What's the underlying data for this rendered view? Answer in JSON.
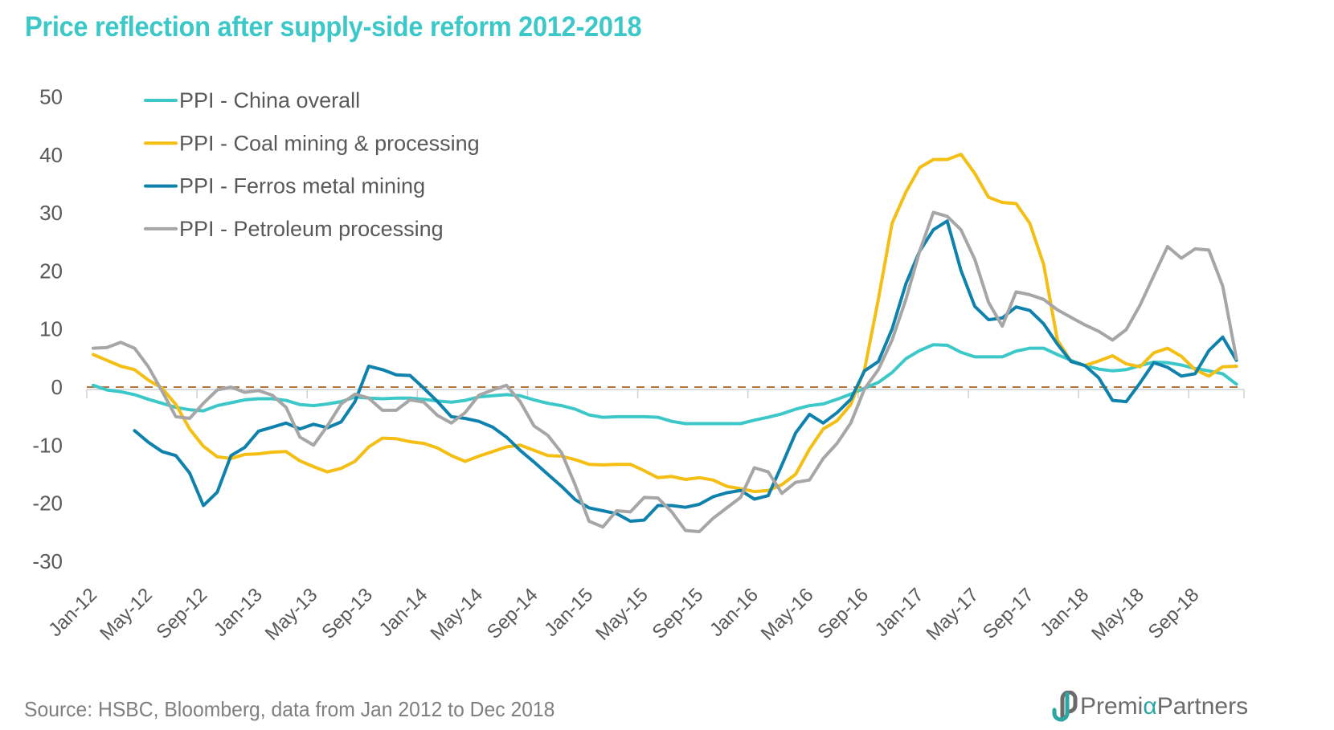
{
  "title": "Price reflection after supply-side reform 2012-2018",
  "source": "Source: HSBC, Bloomberg, data from Jan 2012 to Dec 2018",
  "logo": {
    "prefix": "Premi",
    "alpha": "α",
    "suffix": "Partners",
    "icon": "premia-logo-icon"
  },
  "chart_data": {
    "type": "line",
    "title": "Price reflection after supply-side reform 2012-2018",
    "xlabel": "",
    "ylabel": "",
    "ylim": [
      -30,
      50
    ],
    "yticks": [
      50,
      40,
      30,
      20,
      10,
      0,
      -10,
      -20,
      -30
    ],
    "ytick_labels": [
      "50",
      "40",
      "30",
      "20",
      "10",
      "0",
      "-10",
      "-20",
      "-30"
    ],
    "xtick_labels": [
      "Jan-12",
      "May-12",
      "Sep-12",
      "Jan-13",
      "May-13",
      "Sep-13",
      "Jan-14",
      "May-14",
      "Sep-14",
      "Jan-15",
      "May-15",
      "Sep-15",
      "Jan-16",
      "May-16",
      "Sep-16",
      "Jan-17",
      "May-17",
      "Sep-17",
      "Jan-18",
      "May-18",
      "Sep-18"
    ],
    "xtick_every_months": 4,
    "x_start": "Jan-12",
    "x_end": "Dec-18",
    "n_months": 84,
    "grid": false,
    "legend_position": "top-left",
    "reference_line": {
      "value": 0,
      "style": "dashed",
      "color": "#b5743a"
    },
    "series": [
      {
        "name": "PPI - China overall",
        "color": "#3cc8c8",
        "values": [
          0.3,
          -0.5,
          -0.8,
          -1.3,
          -2.1,
          -2.8,
          -3.5,
          -3.9,
          -4.1,
          -3.2,
          -2.7,
          -2.2,
          -2.0,
          -2.0,
          -2.3,
          -3.0,
          -3.2,
          -2.9,
          -2.5,
          -1.7,
          -1.9,
          -2.0,
          -1.9,
          -1.9,
          -2.1,
          -2.4,
          -2.6,
          -2.3,
          -1.7,
          -1.5,
          -1.3,
          -1.5,
          -2.2,
          -2.8,
          -3.2,
          -3.8,
          -4.8,
          -5.2,
          -5.1,
          -5.1,
          -5.1,
          -5.2,
          -5.9,
          -6.3,
          -6.3,
          -6.3,
          -6.3,
          -6.3,
          -5.7,
          -5.2,
          -4.6,
          -3.8,
          -3.2,
          -2.9,
          -2.1,
          -1.2,
          -0.2,
          0.8,
          2.5,
          4.9,
          6.3,
          7.3,
          7.2,
          6.0,
          5.2,
          5.2,
          5.2,
          6.2,
          6.7,
          6.7,
          5.6,
          4.6,
          3.7,
          3.1,
          2.8,
          3.0,
          3.7,
          4.3,
          4.2,
          3.8,
          3.2,
          2.8,
          2.3,
          0.5
        ]
      },
      {
        "name": "PPI - Coal mining & processing",
        "color": "#f5be12",
        "values": [
          5.6,
          4.6,
          3.6,
          3.0,
          1.2,
          -0.2,
          -3.0,
          -7.2,
          -10.2,
          -12.0,
          -12.3,
          -11.6,
          -11.5,
          -11.2,
          -11.1,
          -12.7,
          -13.7,
          -14.6,
          -14.0,
          -12.8,
          -10.3,
          -8.8,
          -8.9,
          -9.4,
          -9.7,
          -10.5,
          -11.8,
          -12.8,
          -11.9,
          -11.1,
          -10.3,
          -10.0,
          -10.9,
          -11.8,
          -11.9,
          -12.5,
          -13.3,
          -13.4,
          -13.3,
          -13.3,
          -14.4,
          -15.6,
          -15.4,
          -15.9,
          -15.6,
          -16.0,
          -17.1,
          -17.5,
          -18.0,
          -17.8,
          -16.8,
          -15.0,
          -10.7,
          -7.2,
          -5.8,
          -3.0,
          3.0,
          15.1,
          28.2,
          33.6,
          37.8,
          39.2,
          39.2,
          40.1,
          36.8,
          32.7,
          31.8,
          31.6,
          28.2,
          21.1,
          8.1,
          4.4,
          3.7,
          4.5,
          5.4,
          4.0,
          3.5,
          5.9,
          6.7,
          5.3,
          3.0,
          1.9,
          3.5,
          3.6
        ]
      },
      {
        "name": "PPI - Ferros metal mining",
        "color": "#0e82ad",
        "values": [
          null,
          null,
          null,
          -7.5,
          -9.5,
          -11.1,
          -11.8,
          -14.8,
          -20.4,
          -18.1,
          -11.8,
          -10.4,
          -7.6,
          -6.9,
          -6.2,
          -7.2,
          -6.4,
          -7.0,
          -6.0,
          -2.5,
          3.6,
          3.0,
          2.1,
          2.0,
          -0.2,
          -2.5,
          -5.1,
          -5.4,
          -5.9,
          -6.9,
          -8.6,
          -10.9,
          -12.9,
          -15.0,
          -17.1,
          -19.4,
          -20.8,
          -21.3,
          -21.8,
          -23.1,
          -22.9,
          -20.4,
          -20.4,
          -20.7,
          -20.2,
          -18.9,
          -18.2,
          -17.8,
          -19.3,
          -18.7,
          -13.4,
          -7.9,
          -4.7,
          -6.2,
          -4.4,
          -2.1,
          2.8,
          4.4,
          10.0,
          17.8,
          23.4,
          27.1,
          28.6,
          20.1,
          13.9,
          11.6,
          11.9,
          13.8,
          13.2,
          10.9,
          7.4,
          4.4,
          3.7,
          1.6,
          -2.3,
          -2.5,
          0.7,
          4.2,
          3.4,
          1.9,
          2.3,
          6.3,
          8.6,
          4.6
        ]
      },
      {
        "name": "PPI - Petroleum processing",
        "color": "#a6a6a6",
        "values": [
          6.7,
          6.8,
          7.7,
          6.7,
          3.5,
          -0.7,
          -5.1,
          -5.4,
          -2.8,
          -0.5,
          0.0,
          -0.9,
          -0.6,
          -1.4,
          -3.5,
          -8.6,
          -10.0,
          -6.7,
          -2.9,
          -1.2,
          -1.9,
          -4.0,
          -4.0,
          -2.2,
          -2.6,
          -4.9,
          -6.2,
          -4.4,
          -1.4,
          -0.5,
          0.3,
          -2.5,
          -6.7,
          -8.3,
          -11.3,
          -16.9,
          -23.1,
          -24.1,
          -21.3,
          -21.5,
          -19.0,
          -19.1,
          -21.5,
          -24.7,
          -24.9,
          -22.6,
          -20.8,
          -19.0,
          -13.9,
          -14.6,
          -18.3,
          -16.4,
          -16.0,
          -12.3,
          -9.7,
          -6.2,
          -0.3,
          3.0,
          8.1,
          15.1,
          23.4,
          30.1,
          29.4,
          27.1,
          22.0,
          14.6,
          10.5,
          16.4,
          15.9,
          15.1,
          13.3,
          12.0,
          10.7,
          9.6,
          8.1,
          9.9,
          14.1,
          19.2,
          24.2,
          22.2,
          23.8,
          23.6,
          17.4,
          4.9
        ]
      }
    ]
  }
}
